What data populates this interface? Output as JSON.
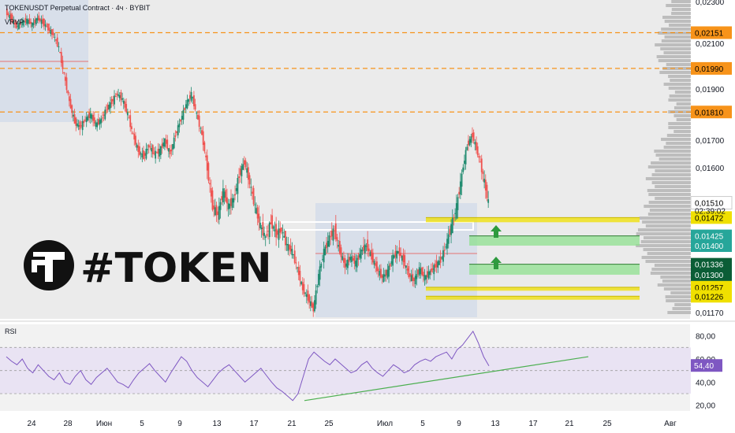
{
  "header": {
    "title": "TOKENUSDT Perpetual Contract · 4ч · BYBIT",
    "indicator": "VRVP",
    "rsi_label": "RSI"
  },
  "logo": {
    "text": "#TOKEN"
  },
  "colors": {
    "up": "#26a69a",
    "down": "#ef5350",
    "candle": "#1e8a6e",
    "orange": "#f7931a",
    "yellow": "#f0e000",
    "green_zone": "#8fe08f",
    "rsi": "#7e57c2",
    "trend": "#4caf50"
  },
  "chart_data": {
    "type": "candlestick",
    "price_axis": {
      "ticks": [
        "0,02300",
        "0,02100",
        "0,01900",
        "0,01700",
        "0,01600",
        "0,01400",
        "0,01170"
      ],
      "ylim": [
        0.0115,
        0.023
      ]
    },
    "price_badges": [
      {
        "label": "0,02151",
        "value": 0.02151,
        "color": "#f7931a",
        "text": "#000000"
      },
      {
        "label": "0,01990",
        "value": 0.0199,
        "color": "#f7931a",
        "text": "#000000"
      },
      {
        "label": "0,01810",
        "value": 0.0181,
        "color": "#f7931a",
        "text": "#000000"
      },
      {
        "label": "0,01510",
        "value": 0.0151,
        "color": "#ffffff",
        "text": "#000000"
      },
      {
        "label": "0,01472",
        "value": 0.01472,
        "color": "#f0e000",
        "text": "#000000"
      },
      {
        "label": "0,01425",
        "value": 0.01425,
        "color": "#26a69a",
        "text": "#ffffff"
      },
      {
        "label": "0,01400",
        "value": 0.014,
        "color": "#26a69a",
        "text": "#ffffff"
      },
      {
        "label": "0,01336",
        "value": 0.01336,
        "color": "#0b5d36",
        "text": "#ffffff"
      },
      {
        "label": "0,01300",
        "value": 0.013,
        "color": "#0b5d36",
        "text": "#ffffff"
      },
      {
        "label": "0,01257",
        "value": 0.01257,
        "color": "#f0e000",
        "text": "#000000"
      },
      {
        "label": "0,01226",
        "value": 0.01226,
        "color": "#f0e000",
        "text": "#000000"
      }
    ],
    "countdown": "02:39:02",
    "x_ticks": [
      "24",
      "28",
      "Июн",
      "5",
      "9",
      "13",
      "17",
      "21",
      "25",
      "Июл",
      "5",
      "9",
      "13",
      "17",
      "21",
      "25",
      "Авг"
    ],
    "resistance_levels": [
      0.02151,
      0.0199,
      0.0181
    ],
    "support_zones": [
      {
        "from": 0.01472,
        "to": 0.0146,
        "color": "yellow"
      },
      {
        "from": 0.01425,
        "to": 0.014,
        "color": "green"
      },
      {
        "from": 0.01336,
        "to": 0.013,
        "color": "green"
      },
      {
        "from": 0.01257,
        "to": 0.01245,
        "color": "yellow"
      },
      {
        "from": 0.01226,
        "to": 0.01214,
        "color": "yellow"
      }
    ],
    "price_path": [
      0.0225,
      0.0222,
      0.0218,
      0.022,
      0.0221,
      0.0219,
      0.0222,
      0.022,
      0.0217,
      0.0214,
      0.0208,
      0.0196,
      0.0185,
      0.0177,
      0.0175,
      0.0178,
      0.018,
      0.0176,
      0.0178,
      0.0182,
      0.0185,
      0.0188,
      0.0186,
      0.018,
      0.0172,
      0.0166,
      0.0164,
      0.0168,
      0.0165,
      0.0166,
      0.017,
      0.0165,
      0.0172,
      0.0178,
      0.0184,
      0.0188,
      0.018,
      0.0172,
      0.016,
      0.015,
      0.0148,
      0.0154,
      0.015,
      0.0152,
      0.0158,
      0.0162,
      0.0156,
      0.015,
      0.0145,
      0.0142,
      0.0146,
      0.0143,
      0.0144,
      0.014,
      0.0138,
      0.0132,
      0.0125,
      0.0122,
      0.0118,
      0.013,
      0.0138,
      0.0142,
      0.0144,
      0.0138,
      0.0133,
      0.0136,
      0.0134,
      0.0138,
      0.014,
      0.0136,
      0.0132,
      0.0129,
      0.0131,
      0.0136,
      0.0138,
      0.0135,
      0.013,
      0.0128,
      0.0132,
      0.0129,
      0.0131,
      0.0133,
      0.0135,
      0.014,
      0.0145,
      0.015,
      0.0158,
      0.0168,
      0.0172,
      0.0165,
      0.0158,
      0.0151
    ],
    "rsi": {
      "ticks": [
        "80,00",
        "60,00",
        "40,00",
        "20,00"
      ],
      "ylim": [
        15,
        90
      ],
      "band": [
        30,
        70
      ],
      "current": "54,40",
      "values": [
        62,
        58,
        55,
        60,
        52,
        48,
        55,
        50,
        45,
        42,
        48,
        40,
        38,
        45,
        50,
        42,
        38,
        44,
        48,
        52,
        46,
        40,
        38,
        35,
        42,
        48,
        52,
        56,
        50,
        45,
        40,
        48,
        55,
        62,
        58,
        50,
        44,
        40,
        36,
        42,
        48,
        52,
        55,
        50,
        45,
        40,
        44,
        48,
        52,
        46,
        40,
        35,
        32,
        28,
        24,
        30,
        45,
        60,
        66,
        62,
        58,
        55,
        60,
        56,
        52,
        48,
        50,
        55,
        58,
        52,
        48,
        45,
        50,
        55,
        52,
        48,
        50,
        55,
        58,
        60,
        58,
        62,
        64,
        66,
        60,
        68,
        72,
        78,
        84,
        74,
        62,
        54
      ]
    }
  }
}
